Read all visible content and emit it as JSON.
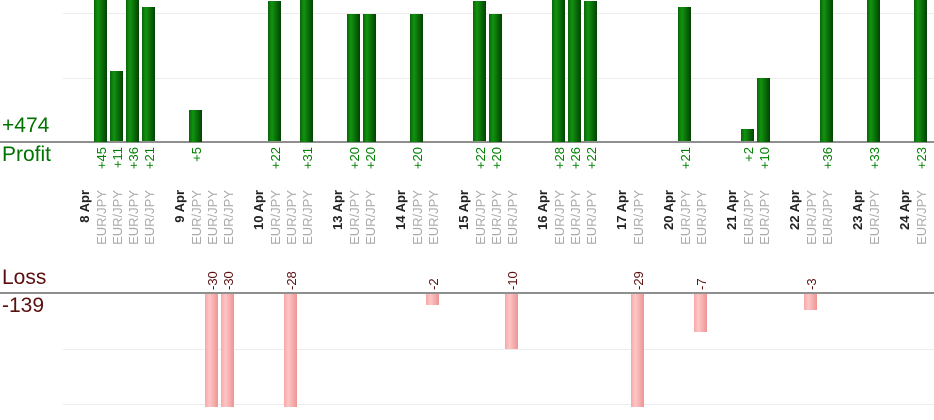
{
  "chart_data": {
    "type": "bar",
    "title": "",
    "profit_section": {
      "label": "Profit",
      "total": "+474",
      "total_value": 474
    },
    "loss_section": {
      "label": "Loss",
      "total": "-139",
      "total_value": -139
    },
    "profit_gridlines": [
      10,
      20
    ],
    "loss_gridlines": [
      -10,
      -20
    ],
    "profit_axis": {
      "zero_visible": true,
      "bars_clipped_above": 22
    },
    "loss_axis": {
      "zero_visible": true,
      "bars_clipped_below": -21
    },
    "colors": {
      "profit_bar": "#0f8a0f",
      "loss_bar": "#ffbcbc",
      "profit_text": "#008000",
      "loss_text": "#5c0f0f",
      "date_text": "#222222",
      "symbol_text": "#aaaaaa",
      "axis_line": "#8f8f8f",
      "gridline": "#ededed"
    },
    "groups": [
      {
        "date": "8 Apr",
        "trades": [
          {
            "symbol": "EUR/JPY",
            "value": 45,
            "label": "+45"
          },
          {
            "symbol": "EUR/JPY",
            "value": 11,
            "label": "+11"
          },
          {
            "symbol": "EUR/JPY",
            "value": 36,
            "label": "+36"
          },
          {
            "symbol": "EUR/JPY",
            "value": 21,
            "label": "+21"
          }
        ]
      },
      {
        "date": "9 Apr",
        "trades": [
          {
            "symbol": "EUR/JPY",
            "value": 5,
            "label": "+5"
          },
          {
            "symbol": "EUR/JPY",
            "value": -30,
            "label": "-30"
          },
          {
            "symbol": "EUR/JPY",
            "value": -30,
            "label": "-30"
          }
        ]
      },
      {
        "date": "10 Apr",
        "trades": [
          {
            "symbol": "EUR/JPY",
            "value": 22,
            "label": "+22"
          },
          {
            "symbol": "EUR/JPY",
            "value": -28,
            "label": "-28"
          },
          {
            "symbol": "EUR/JPY",
            "value": 31,
            "label": "+31"
          }
        ]
      },
      {
        "date": "13 Apr",
        "trades": [
          {
            "symbol": "EUR/JPY",
            "value": 20,
            "label": "+20"
          },
          {
            "symbol": "EUR/JPY",
            "value": 20,
            "label": "+20"
          }
        ]
      },
      {
        "date": "14 Apr",
        "trades": [
          {
            "symbol": "EUR/JPY",
            "value": 20,
            "label": "+20"
          },
          {
            "symbol": "EUR/JPY",
            "value": -2,
            "label": "-2"
          }
        ]
      },
      {
        "date": "15 Apr",
        "trades": [
          {
            "symbol": "EUR/JPY",
            "value": 22,
            "label": "+22"
          },
          {
            "symbol": "EUR/JPY",
            "value": 20,
            "label": "+20"
          },
          {
            "symbol": "EUR/JPY",
            "value": -10,
            "label": "-10"
          }
        ]
      },
      {
        "date": "16 Apr",
        "trades": [
          {
            "symbol": "EUR/JPY",
            "value": 28,
            "label": "+28"
          },
          {
            "symbol": "EUR/JPY",
            "value": 26,
            "label": "+26"
          },
          {
            "symbol": "EUR/JPY",
            "value": 22,
            "label": "+22"
          }
        ]
      },
      {
        "date": "17 Apr",
        "trades": [
          {
            "symbol": "EUR/JPY",
            "value": -29,
            "label": "-29"
          }
        ]
      },
      {
        "date": "20 Apr",
        "trades": [
          {
            "symbol": "EUR/JPY",
            "value": 21,
            "label": "+21"
          },
          {
            "symbol": "EUR/JPY",
            "value": -7,
            "label": "-7"
          }
        ]
      },
      {
        "date": "21 Apr",
        "trades": [
          {
            "symbol": "EUR/JPY",
            "value": 2,
            "label": "+2"
          },
          {
            "symbol": "EUR/JPY",
            "value": 10,
            "label": "+10"
          }
        ]
      },
      {
        "date": "22 Apr",
        "trades": [
          {
            "symbol": "EUR/JPY",
            "value": -3,
            "label": "-3"
          },
          {
            "symbol": "EUR/JPY",
            "value": 36,
            "label": "+36"
          }
        ]
      },
      {
        "date": "23 Apr",
        "trades": [
          {
            "symbol": "EUR/JPY",
            "value": 33,
            "label": "+33"
          }
        ]
      },
      {
        "date": "24 Apr",
        "trades": [
          {
            "symbol": "EUR/JPY",
            "value": 23,
            "label": "+23"
          }
        ]
      }
    ]
  }
}
